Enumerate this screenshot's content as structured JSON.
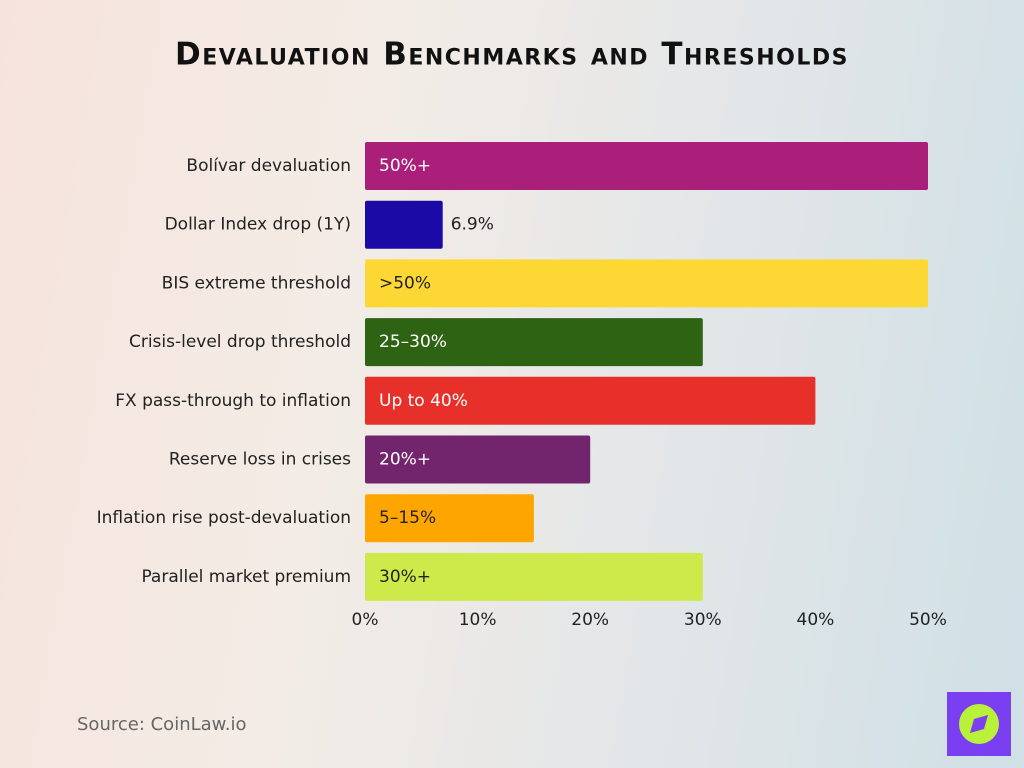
{
  "chart_data": {
    "type": "hbar",
    "title": "Devaluation Benchmarks and Thresholds",
    "categories": [
      "Bolívar devaluation",
      "Dollar Index drop (1Y)",
      "BIS extreme threshold",
      "Crisis-level drop threshold",
      "FX pass-through to inflation",
      "Reserve loss in crises",
      "Inflation rise post-devaluation",
      "Parallel market premium"
    ],
    "values": [
      50,
      6.9,
      50,
      30,
      40,
      20,
      15,
      30
    ],
    "value_labels": [
      "50%+",
      "6.9%",
      ">50%",
      "25–30%",
      "Up to 40%",
      "20%+",
      "5–15%",
      "30%+"
    ],
    "colors": [
      "#a91f7a",
      "#1c0aa6",
      "#fdd835",
      "#2e6314",
      "#e8302a",
      "#72246c",
      "#ffa500",
      "#cdea4a"
    ],
    "xlim": [
      0,
      50
    ],
    "xticks": [
      {
        "value": 0,
        "label": "0%"
      },
      {
        "value": 10,
        "label": "10%"
      },
      {
        "value": 20,
        "label": "20%"
      },
      {
        "value": 30,
        "label": "30%"
      },
      {
        "value": 40,
        "label": "40%"
      },
      {
        "value": 50,
        "label": "50%"
      }
    ],
    "grid": false,
    "source": "Source: CoinLaw.io"
  }
}
